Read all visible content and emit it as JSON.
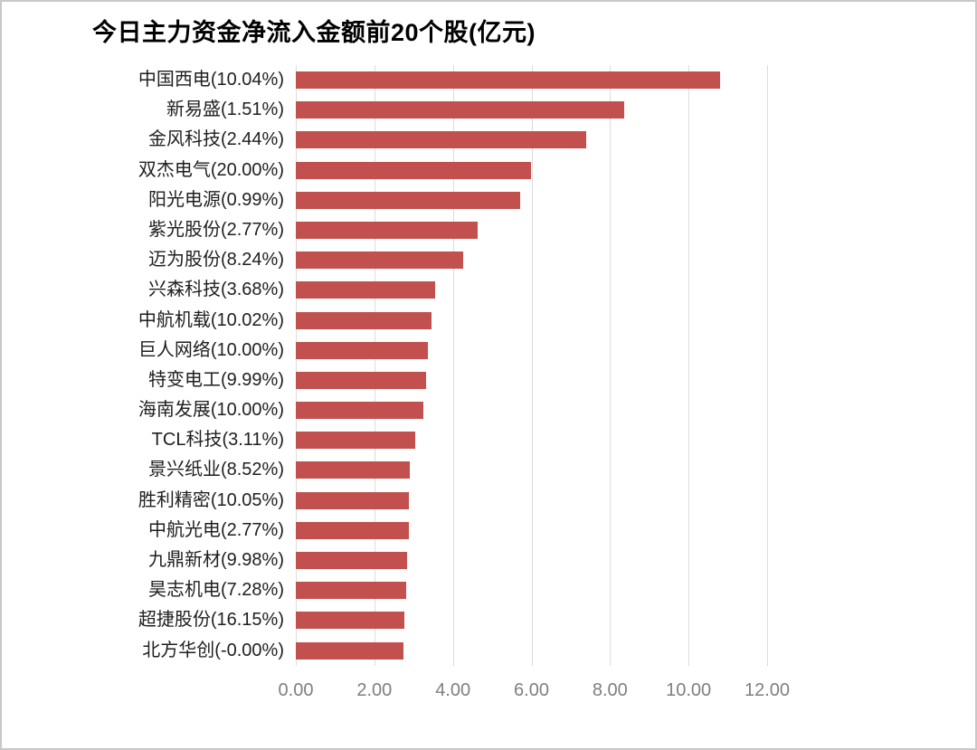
{
  "title": "今日主力资金净流入金额前20个股(亿元)",
  "colors": {
    "bar": "#c1504e",
    "gridline": "#dcdcdc",
    "axis_label": "#7f7f7f",
    "category_label": "#1f1f1f",
    "title": "#000000",
    "page_border": "#c8c8c8"
  },
  "chart_data": {
    "type": "bar",
    "orientation": "horizontal",
    "title": "今日主力资金净流入金额前20个股(亿元)",
    "unit": "亿元",
    "categories": [
      "中国西电(10.04%)",
      "新易盛(1.51%)",
      "金风科技(2.44%)",
      "双杰电气(20.00%)",
      "阳光电源(0.99%)",
      "紫光股份(2.77%)",
      "迈为股份(8.24%)",
      "兴森科技(3.68%)",
      "中航机载(10.02%)",
      "巨人网络(10.00%)",
      "特变电工(9.99%)",
      "海南发展(10.00%)",
      "TCL科技(3.11%)",
      "景兴纸业(8.52%)",
      "胜利精密(10.05%)",
      "中航光电(2.77%)",
      "九鼎新材(9.98%)",
      "昊志机电(7.28%)",
      "超捷股份(16.15%)",
      "北方华创(-0.00%)"
    ],
    "values": [
      10.8,
      8.37,
      7.4,
      5.99,
      5.71,
      4.64,
      4.26,
      3.55,
      3.45,
      3.37,
      3.31,
      3.25,
      3.05,
      2.9,
      2.88,
      2.87,
      2.83,
      2.8,
      2.77,
      2.75
    ],
    "xlabel": "",
    "ylabel": "",
    "xlim": [
      0,
      12
    ],
    "x_ticks": [
      0,
      2,
      4,
      6,
      8,
      10,
      12
    ],
    "x_tick_labels": [
      "0.00",
      "2.00",
      "4.00",
      "6.00",
      "8.00",
      "10.00",
      "12.00"
    ],
    "grid": "vertical-only",
    "legend": "none"
  }
}
